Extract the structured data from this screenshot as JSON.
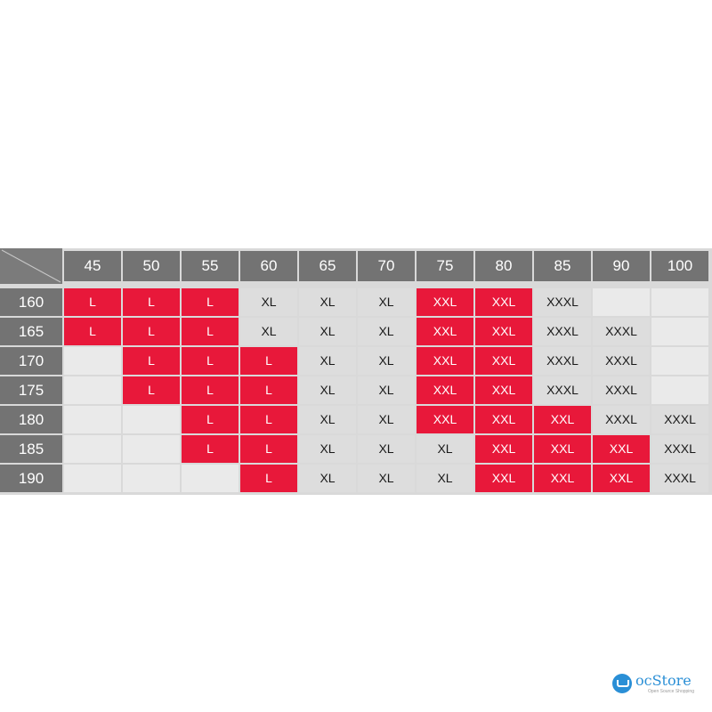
{
  "weights": [
    "45",
    "50",
    "55",
    "60",
    "65",
    "70",
    "75",
    "80",
    "85",
    "90",
    "100"
  ],
  "heights": [
    "160",
    "165",
    "170",
    "175",
    "180",
    "185",
    "190"
  ],
  "rows": [
    [
      "L",
      "L",
      "L",
      "XL",
      "XL",
      "XL",
      "XXL",
      "XXL",
      "XXXL",
      "",
      ""
    ],
    [
      "L",
      "L",
      "L",
      "XL",
      "XL",
      "XL",
      "XXL",
      "XXL",
      "XXXL",
      "XXXL",
      ""
    ],
    [
      "",
      "L",
      "L",
      "L",
      "XL",
      "XL",
      "XXL",
      "XXL",
      "XXXL",
      "XXXL",
      ""
    ],
    [
      "",
      "L",
      "L",
      "L",
      "XL",
      "XL",
      "XXL",
      "XXL",
      "XXXL",
      "XXXL",
      ""
    ],
    [
      "",
      "",
      "L",
      "L",
      "XL",
      "XL",
      "XXL",
      "XXL",
      "XXL",
      "XXXL",
      "XXXL"
    ],
    [
      "",
      "",
      "L",
      "L",
      "XL",
      "XL",
      "XL",
      "XXL",
      "XXL",
      "XXL",
      "XXXL"
    ],
    [
      "",
      "",
      "",
      "L",
      "XL",
      "XL",
      "XL",
      "XXL",
      "XXL",
      "XXL",
      "XXXL"
    ]
  ],
  "highlighted": [
    [
      1,
      1,
      1,
      0,
      0,
      0,
      1,
      1,
      0,
      0,
      0
    ],
    [
      1,
      1,
      1,
      0,
      0,
      0,
      1,
      1,
      0,
      0,
      0
    ],
    [
      0,
      1,
      1,
      1,
      0,
      0,
      1,
      1,
      0,
      0,
      0
    ],
    [
      0,
      1,
      1,
      1,
      0,
      0,
      1,
      1,
      0,
      0,
      0
    ],
    [
      0,
      0,
      1,
      1,
      0,
      0,
      1,
      1,
      1,
      0,
      0
    ],
    [
      0,
      0,
      1,
      1,
      0,
      0,
      0,
      1,
      1,
      1,
      0
    ],
    [
      0,
      0,
      0,
      1,
      0,
      0,
      0,
      1,
      1,
      1,
      0
    ]
  ],
  "colors": {
    "highlight": "#e8183a",
    "header": "#737373",
    "cell": "#e9e9e9"
  },
  "logo": {
    "name": "ocStore",
    "tagline": "Open Source Shopping"
  }
}
